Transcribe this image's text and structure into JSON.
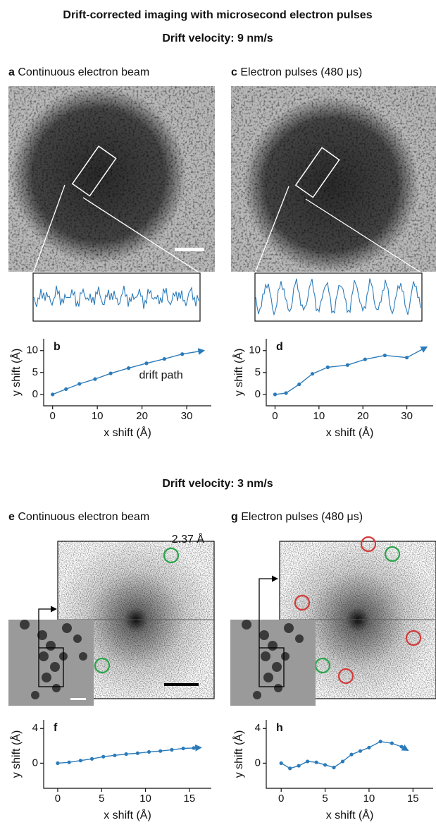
{
  "title": "Drift-corrected imaging with microsecond electron pulses",
  "sections": [
    {
      "title": "Drift velocity: 9 nm/s"
    },
    {
      "title": "Drift velocity: 3 nm/s"
    }
  ],
  "image_panels": [
    {
      "letter": "a",
      "label": "Continuous electron beam"
    },
    {
      "letter": "c",
      "label": "Electron pulses (480 μs)"
    },
    {
      "letter": "e",
      "label": "Continuous electron beam",
      "annotation": "2.37 Å"
    },
    {
      "letter": "g",
      "label": "Electron pulses (480 μs)"
    }
  ],
  "chart_data": [
    {
      "type": "line",
      "letter": "b",
      "annotation": "drift path",
      "x_label": "x shift (Å)",
      "y_label": "y shift (Å)",
      "color": "#2b7bba",
      "x": [
        0,
        3,
        6,
        9.5,
        13,
        17,
        21,
        25,
        29,
        33.8
      ],
      "values": [
        0,
        1.2,
        2.4,
        3.5,
        4.8,
        6,
        7.1,
        8.1,
        9.2,
        10
      ],
      "xlim": [
        -2,
        35.5
      ],
      "ylim": [
        -2.6,
        12.7
      ],
      "xticks": [
        0,
        10,
        20,
        30
      ],
      "yticks": [
        0,
        5,
        10
      ]
    },
    {
      "type": "line",
      "letter": "d",
      "x_label": "x shift (Å)",
      "y_label": "y shift (Å)",
      "color": "#2b7bba",
      "x": [
        0,
        2.5,
        5.5,
        8.5,
        12,
        16.5,
        20.5,
        25,
        30,
        34.5
      ],
      "values": [
        0,
        0.3,
        2.3,
        4.7,
        6.2,
        6.7,
        8,
        8.9,
        8.4,
        10.8
      ],
      "xlim": [
        -2,
        36
      ],
      "ylim": [
        -2.6,
        12.7
      ],
      "xticks": [
        0,
        10,
        20,
        30
      ],
      "yticks": [
        0,
        5,
        10
      ]
    },
    {
      "type": "line",
      "letter": "f",
      "x_label": "x shift (Å)",
      "y_label": "y shift (Å)",
      "color": "#2b7bba",
      "x": [
        0,
        1.3,
        2.6,
        3.9,
        5.2,
        6.5,
        7.8,
        9.1,
        10.4,
        11.7,
        13,
        14.3,
        15.5,
        16.3
      ],
      "values": [
        0,
        0.1,
        0.3,
        0.5,
        0.75,
        0.9,
        1.05,
        1.15,
        1.3,
        1.4,
        1.55,
        1.7,
        1.75,
        1.8
      ],
      "xlim": [
        -1.6,
        17.5
      ],
      "ylim": [
        -2.9,
        5
      ],
      "xticks": [
        0,
        5,
        10,
        15
      ],
      "yticks": [
        0,
        4
      ]
    },
    {
      "type": "line",
      "letter": "h",
      "x_label": "x shift (Å)",
      "y_label": "y shift (Å)",
      "color": "#2b7bba",
      "x": [
        0,
        1,
        2,
        3,
        4,
        5,
        6,
        7,
        8,
        9,
        10,
        11.3,
        12.6,
        13.7,
        14.4
      ],
      "values": [
        0,
        -0.6,
        -0.3,
        0.2,
        0.1,
        -0.2,
        -0.5,
        0.2,
        1,
        1.4,
        1.8,
        2.5,
        2.3,
        1.9,
        1.5
      ],
      "xlim": [
        -1.7,
        17.3
      ],
      "ylim": [
        -2.9,
        5
      ],
      "xticks": [
        0,
        5,
        10,
        15
      ],
      "yticks": [
        0,
        4
      ]
    }
  ]
}
